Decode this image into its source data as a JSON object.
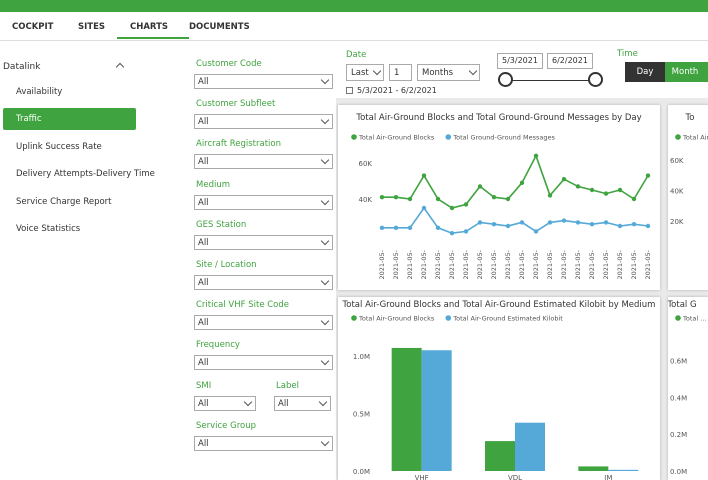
{
  "nav": {
    "tabs": [
      "COCKPIT",
      "SITES",
      "CHARTS",
      "DOCUMENTS"
    ],
    "active": 2
  },
  "sidebar": {
    "group": "Datalink",
    "items": [
      "Availability",
      "Traffic",
      "Uplink Success Rate",
      "Delivery Attempts-Delivery Time",
      "Service Charge Report",
      "Voice Statistics"
    ],
    "active": 1
  },
  "filters": [
    {
      "label": "Customer Code",
      "value": "All"
    },
    {
      "label": "Customer Subfleet",
      "value": "All"
    },
    {
      "label": "Aircraft Registration",
      "value": "All"
    },
    {
      "label": "Medium",
      "value": "All"
    },
    {
      "label": "GES Station",
      "value": "All"
    },
    {
      "label": "Site / Location",
      "value": "All"
    },
    {
      "label": "Critical VHF Site Code",
      "value": "All"
    },
    {
      "label": "Frequency",
      "value": "All"
    },
    {
      "label": "SMI",
      "value": "All"
    },
    {
      "label": "Label",
      "value": "All"
    },
    {
      "label": "Service Group",
      "value": "All"
    }
  ],
  "date": {
    "label": "Date",
    "mode": "Last",
    "count": "1",
    "unit": "Months",
    "range": "5/3/2021 - 6/2/2021",
    "start": "5/3/2021",
    "end": "6/2/2021"
  },
  "time": {
    "label": "Time",
    "options": [
      "Day",
      "Month"
    ],
    "active": 0
  },
  "chart_data": [
    {
      "type": "line",
      "title": "Total Air-Ground Blocks and Total Ground-Ground Messages by Day",
      "categories": [
        "2021-05-",
        "2021-05-",
        "2021-05-",
        "2021-05-",
        "2021-05-",
        "2021-05-",
        "2021-05-",
        "2021-05-",
        "2021-05-",
        "2021-05-",
        "2021-05-",
        "2021-05-",
        "2021-05-",
        "2021-05-",
        "2021-05-",
        "2021-05-",
        "2021-05-",
        "2021-05-",
        "2021-05-",
        "2021-05-"
      ],
      "series": [
        {
          "name": "Total Air-Ground Blocks",
          "color": "#3fa33f",
          "values": [
            41000,
            41000,
            40000,
            53000,
            40000,
            35000,
            37000,
            47000,
            41000,
            40000,
            49000,
            64000,
            42000,
            51000,
            47000,
            45000,
            43000,
            45000,
            40000,
            53000
          ]
        },
        {
          "name": "Total Ground-Ground Messages",
          "color": "#54a9d8",
          "values": [
            24000,
            24000,
            24000,
            35000,
            24000,
            21000,
            22000,
            27000,
            26000,
            25000,
            27000,
            22000,
            27000,
            28000,
            27000,
            26000,
            27000,
            25000,
            26000,
            25000
          ]
        }
      ],
      "ylim": [
        15000,
        70000
      ],
      "yticks": [
        {
          "value": 40000,
          "label": "40K"
        },
        {
          "value": 60000,
          "label": "60K"
        }
      ]
    },
    {
      "type": "bar",
      "title": "Total Air-Ground Blocks and Total Air-Ground Estimated Kilobit by Medium",
      "categories": [
        "VHF",
        "VDL",
        "IM"
      ],
      "series": [
        {
          "name": "Total Air-Ground Blocks",
          "color": "#3fa33f",
          "values": [
            1070000,
            260000,
            40000
          ]
        },
        {
          "name": "Total Air-Ground Estimated Kilobit",
          "color": "#54a9d8",
          "values": [
            1050000,
            420000,
            10000
          ]
        }
      ],
      "ylim": [
        0,
        1200000
      ],
      "yticks": [
        {
          "value": 0,
          "label": "0.0M"
        },
        {
          "value": 500000,
          "label": "0.5M"
        },
        {
          "value": 1000000,
          "label": "1.0M"
        }
      ]
    },
    {
      "type": "line",
      "title": "To",
      "series": [
        {
          "name": "Total Air-...",
          "color": "#3fa33f"
        }
      ],
      "ylim": [
        5000,
        70000
      ],
      "yticks": [
        {
          "value": 20000,
          "label": "20K"
        },
        {
          "value": 40000,
          "label": "40K"
        },
        {
          "value": 60000,
          "label": "60K"
        }
      ]
    },
    {
      "type": "bar",
      "title": "Total G",
      "series": [
        {
          "name": "Total ...",
          "color": "#3fa33f"
        }
      ],
      "ylim": [
        0,
        750000
      ],
      "yticks": [
        {
          "value": 0,
          "label": "0.0M"
        },
        {
          "value": 200000,
          "label": "0.2M"
        },
        {
          "value": 400000,
          "label": "0.4M"
        },
        {
          "value": 600000,
          "label": "0.6M"
        }
      ]
    }
  ]
}
